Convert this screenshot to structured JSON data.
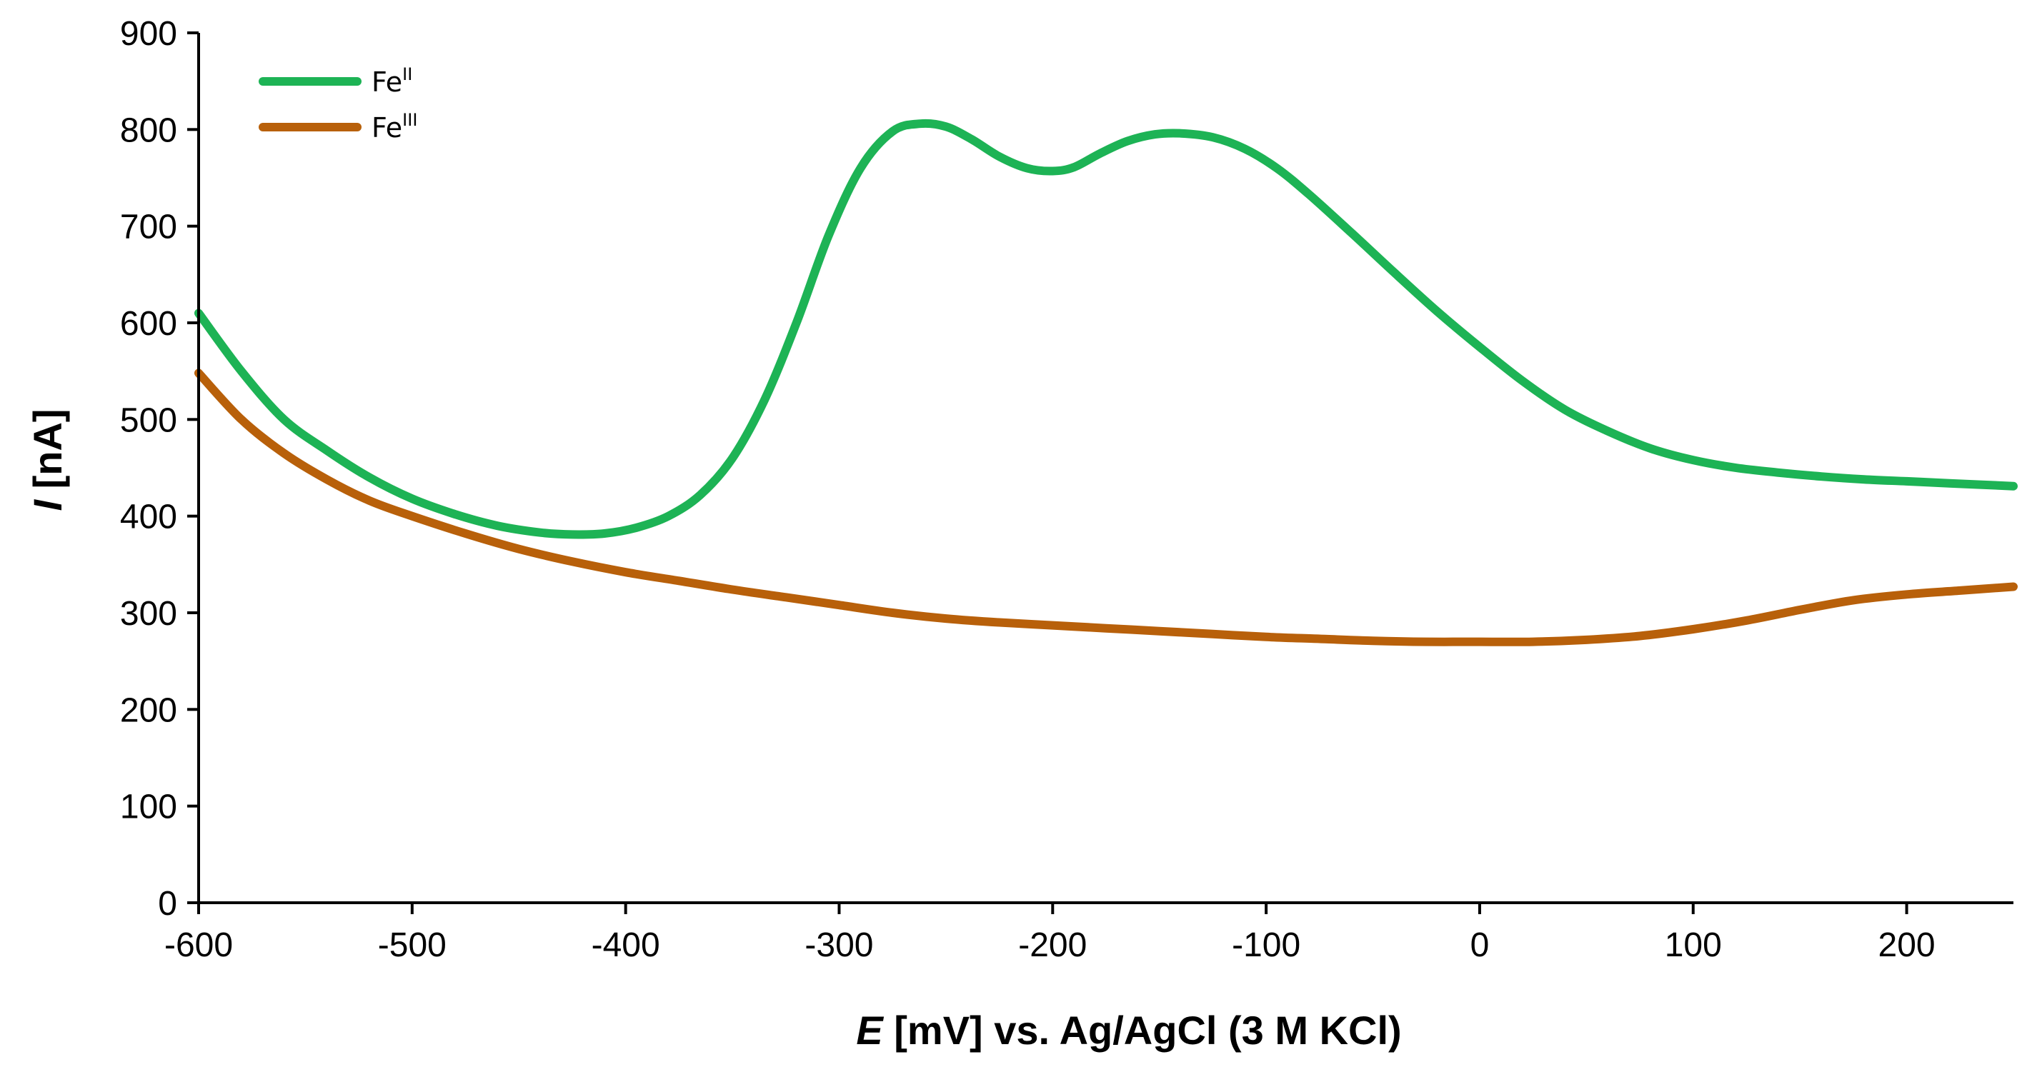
{
  "chart_data": {
    "type": "line",
    "title": "",
    "xlabel_italic": "E",
    "xlabel_rest": " [mV] vs. Ag/AgCl (3 M KCl)",
    "ylabel_italic": "I",
    "ylabel_rest": " [nA]",
    "xlim": [
      -600,
      250
    ],
    "ylim": [
      0,
      900
    ],
    "xticks": [
      -600,
      -500,
      -400,
      -300,
      -200,
      -100,
      0,
      100,
      200
    ],
    "yticks": [
      0,
      100,
      200,
      300,
      400,
      500,
      600,
      700,
      800,
      900
    ],
    "grid": false,
    "legend_position": "top-left",
    "series": [
      {
        "name_base": "Fe",
        "name_sup": "II",
        "color": "#1DB355",
        "x": [
          -600,
          -580,
          -560,
          -540,
          -520,
          -500,
          -480,
          -460,
          -440,
          -425,
          -410,
          -395,
          -380,
          -365,
          -350,
          -335,
          -320,
          -305,
          -290,
          -275,
          -262,
          -250,
          -238,
          -225,
          -212,
          -200,
          -190,
          -178,
          -165,
          -152,
          -140,
          -125,
          -110,
          -95,
          -80,
          -60,
          -40,
          -20,
          0,
          20,
          40,
          60,
          80,
          100,
          120,
          140,
          160,
          180,
          200,
          220,
          250
        ],
        "y": [
          610,
          550,
          500,
          468,
          440,
          418,
          402,
          390,
          383,
          381,
          382,
          388,
          400,
          422,
          460,
          520,
          600,
          690,
          760,
          798,
          806,
          803,
          790,
          772,
          760,
          757,
          761,
          775,
          788,
          795,
          796,
          792,
          780,
          760,
          733,
          693,
          652,
          612,
          575,
          540,
          510,
          488,
          470,
          458,
          450,
          445,
          441,
          438,
          436,
          434,
          431
        ]
      },
      {
        "name_base": "Fe",
        "name_sup": "III",
        "color": "#B8600A",
        "x": [
          -600,
          -580,
          -560,
          -540,
          -520,
          -500,
          -475,
          -450,
          -425,
          -400,
          -375,
          -350,
          -325,
          -300,
          -275,
          -250,
          -225,
          -200,
          -175,
          -150,
          -125,
          -100,
          -75,
          -50,
          -25,
          0,
          25,
          50,
          75,
          100,
          125,
          150,
          175,
          200,
          225,
          250
        ],
        "y": [
          548,
          500,
          465,
          438,
          416,
          400,
          382,
          366,
          353,
          342,
          333,
          324,
          316,
          308,
          300,
          294,
          290,
          287,
          284,
          281,
          278,
          275,
          273,
          271,
          270,
          270,
          270,
          272,
          276,
          283,
          292,
          303,
          313,
          319,
          323,
          327
        ]
      }
    ]
  }
}
